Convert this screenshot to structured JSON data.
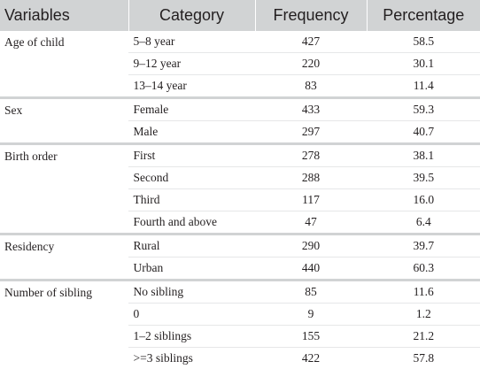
{
  "table": {
    "headers": [
      "Variables",
      "Category",
      "Frequency",
      "Percentage"
    ],
    "groups": [
      {
        "variable": "Age of child",
        "rows": [
          {
            "category": "5–8 year",
            "frequency": "427",
            "percentage": "58.5"
          },
          {
            "category": "9–12 year",
            "frequency": "220",
            "percentage": "30.1"
          },
          {
            "category": "13–14 year",
            "frequency": "83",
            "percentage": "11.4"
          }
        ]
      },
      {
        "variable": "Sex",
        "rows": [
          {
            "category": "Female",
            "frequency": "433",
            "percentage": "59.3"
          },
          {
            "category": "Male",
            "frequency": "297",
            "percentage": "40.7"
          }
        ]
      },
      {
        "variable": "Birth order",
        "rows": [
          {
            "category": "First",
            "frequency": "278",
            "percentage": "38.1"
          },
          {
            "category": "Second",
            "frequency": "288",
            "percentage": "39.5"
          },
          {
            "category": "Third",
            "frequency": "117",
            "percentage": "16.0"
          },
          {
            "category": "Fourth and above",
            "frequency": "47",
            "percentage": "6.4"
          }
        ]
      },
      {
        "variable": "Residency",
        "rows": [
          {
            "category": "Rural",
            "frequency": "290",
            "percentage": "39.7"
          },
          {
            "category": "Urban",
            "frequency": "440",
            "percentage": "60.3"
          }
        ]
      },
      {
        "variable": "Number of sibling",
        "rows": [
          {
            "category": "No sibling",
            "frequency": "85",
            "percentage": "11.6"
          },
          {
            "category": "0",
            "frequency": "9",
            "percentage": "1.2"
          },
          {
            "category": "1–2 siblings",
            "frequency": "155",
            "percentage": "21.2"
          },
          {
            "category": ">=3 siblings",
            "frequency": "422",
            "percentage": "57.8"
          }
        ]
      }
    ]
  }
}
